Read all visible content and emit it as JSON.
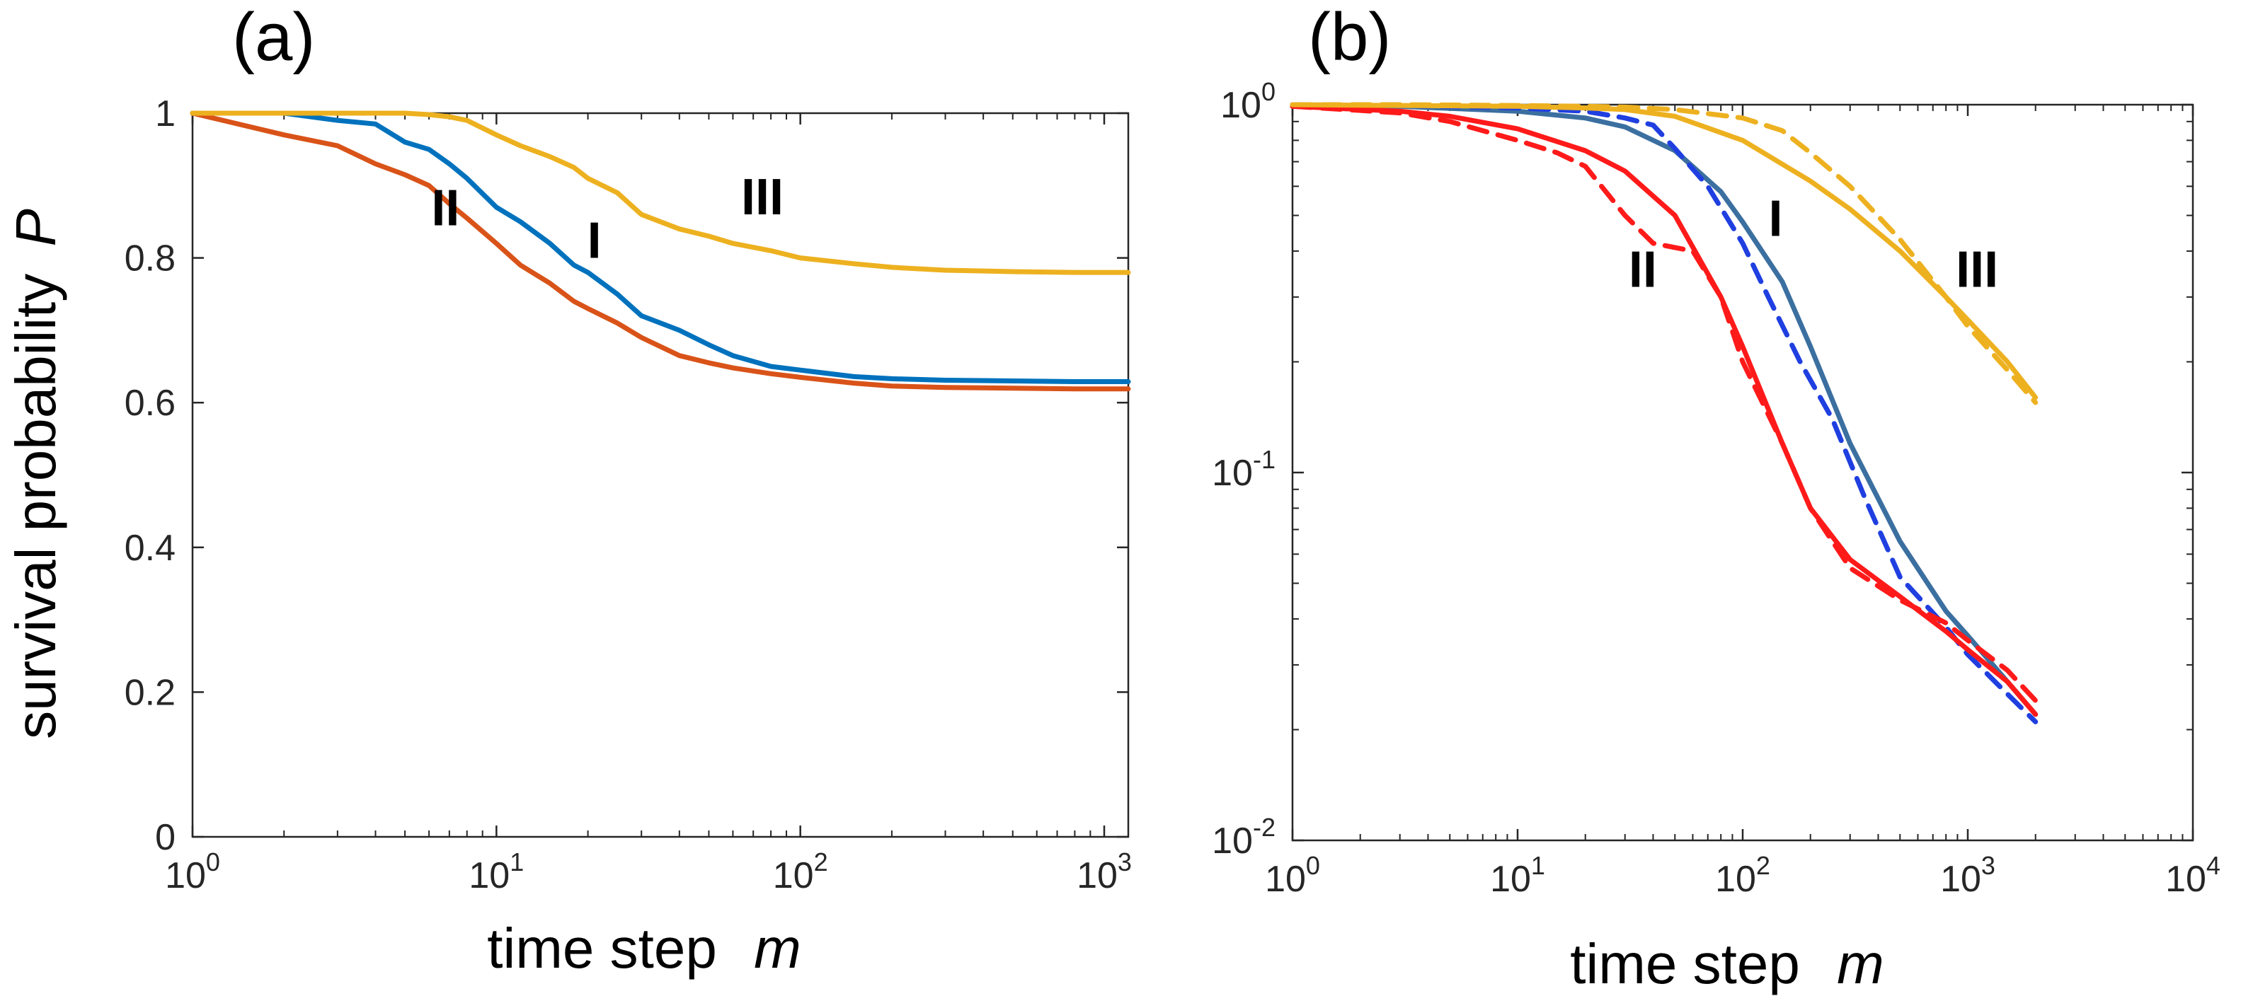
{
  "chart_data": [
    {
      "panel": "(a)",
      "type": "line",
      "xscale": "log",
      "yscale": "linear",
      "xlabel": "time step",
      "xlabel_var": "m",
      "ylabel": "survival probability",
      "ylabel_var": "P",
      "xlim": [
        1,
        1200
      ],
      "ylim": [
        0,
        1
      ],
      "xticks": [
        {
          "value": 1,
          "base": "10",
          "exp": "0"
        },
        {
          "value": 10,
          "base": "10",
          "exp": "1"
        },
        {
          "value": 100,
          "base": "10",
          "exp": "2"
        },
        {
          "value": 1000,
          "base": "10",
          "exp": "3"
        }
      ],
      "yticks": [
        {
          "value": 0,
          "label": "0"
        },
        {
          "value": 0.2,
          "label": "0.2"
        },
        {
          "value": 0.4,
          "label": "0.4"
        },
        {
          "value": 0.6,
          "label": "0.6"
        },
        {
          "value": 0.8,
          "label": "0.8"
        },
        {
          "value": 1,
          "label": "1"
        }
      ],
      "grid": false,
      "series": [
        {
          "name": "I",
          "color": "#0072BD",
          "style": "solid",
          "x": [
            1,
            2,
            3,
            4,
            5,
            6,
            7,
            8,
            10,
            12,
            15,
            18,
            20,
            25,
            30,
            40,
            50,
            60,
            80,
            100,
            150,
            200,
            300,
            500,
            800,
            1200
          ],
          "y": [
            1,
            1,
            0.99,
            0.985,
            0.96,
            0.95,
            0.93,
            0.91,
            0.87,
            0.85,
            0.82,
            0.79,
            0.78,
            0.75,
            0.72,
            0.7,
            0.68,
            0.665,
            0.65,
            0.645,
            0.636,
            0.633,
            0.631,
            0.63,
            0.629,
            0.629
          ]
        },
        {
          "name": "II",
          "color": "#D95319",
          "style": "solid",
          "x": [
            1,
            2,
            3,
            4,
            5,
            6,
            7,
            8,
            10,
            12,
            15,
            18,
            20,
            25,
            30,
            40,
            50,
            60,
            80,
            100,
            150,
            200,
            300,
            500,
            800,
            1200
          ],
          "y": [
            1,
            0.97,
            0.955,
            0.93,
            0.915,
            0.9,
            0.875,
            0.855,
            0.82,
            0.79,
            0.765,
            0.74,
            0.73,
            0.71,
            0.69,
            0.665,
            0.655,
            0.648,
            0.64,
            0.635,
            0.627,
            0.623,
            0.621,
            0.62,
            0.619,
            0.619
          ]
        },
        {
          "name": "III",
          "color": "#EDB120",
          "style": "solid",
          "x": [
            1,
            2,
            3,
            4,
            5,
            6,
            7,
            8,
            10,
            12,
            15,
            18,
            20,
            25,
            30,
            40,
            50,
            60,
            80,
            100,
            150,
            200,
            300,
            500,
            800,
            1200
          ],
          "y": [
            1,
            1,
            1,
            1,
            1,
            0.998,
            0.995,
            0.99,
            0.97,
            0.955,
            0.94,
            0.925,
            0.91,
            0.89,
            0.86,
            0.84,
            0.83,
            0.82,
            0.81,
            0.8,
            0.792,
            0.787,
            0.783,
            0.781,
            0.78,
            0.78
          ]
        }
      ],
      "annotations": [
        {
          "text": "II",
          "x": 6.8,
          "y": 0.845
        },
        {
          "text": "I",
          "x": 21,
          "y": 0.8
        },
        {
          "text": "III",
          "x": 75,
          "y": 0.86
        }
      ]
    },
    {
      "panel": "(b)",
      "type": "line",
      "xscale": "log",
      "yscale": "log",
      "xlabel": "time step",
      "xlabel_var": "m",
      "xlim": [
        1,
        10000
      ],
      "ylim": [
        0.01,
        1.0
      ],
      "xticks": [
        {
          "value": 1,
          "base": "10",
          "exp": "0"
        },
        {
          "value": 10,
          "base": "10",
          "exp": "1"
        },
        {
          "value": 100,
          "base": "10",
          "exp": "2"
        },
        {
          "value": 1000,
          "base": "10",
          "exp": "3"
        },
        {
          "value": 10000,
          "base": "10",
          "exp": "4"
        }
      ],
      "yticks": [
        {
          "value": 0.01,
          "base": "10",
          "exp": "-2"
        },
        {
          "value": 0.1,
          "base": "10",
          "exp": "-1"
        },
        {
          "value": 1,
          "base": "10",
          "exp": "0"
        }
      ],
      "grid": false,
      "series": [
        {
          "name": "I",
          "color": "#3B6FA0",
          "style": "solid",
          "x": [
            1,
            3,
            10,
            20,
            30,
            50,
            80,
            100,
            150,
            200,
            300,
            500,
            800,
            1000,
            1500,
            2000
          ],
          "y": [
            0.995,
            0.99,
            0.96,
            0.92,
            0.87,
            0.75,
            0.58,
            0.48,
            0.33,
            0.22,
            0.12,
            0.065,
            0.042,
            0.036,
            0.027,
            0.022
          ]
        },
        {
          "name": "I",
          "color": "#1F3FE0",
          "style": "dashed",
          "x": [
            1,
            3,
            10,
            20,
            30,
            40,
            50,
            70,
            100,
            130,
            180,
            250,
            350,
            500,
            800,
            1000,
            1500,
            2000
          ],
          "y": [
            1.0,
            0.995,
            0.98,
            0.96,
            0.92,
            0.88,
            0.76,
            0.6,
            0.42,
            0.3,
            0.2,
            0.14,
            0.085,
            0.052,
            0.038,
            0.032,
            0.025,
            0.021
          ]
        },
        {
          "name": "II",
          "color": "#FF1A1A",
          "style": "solid",
          "x": [
            1,
            3,
            5,
            10,
            20,
            30,
            50,
            80,
            100,
            150,
            200,
            300,
            500,
            800,
            1000,
            1500,
            2000
          ],
          "y": [
            0.99,
            0.96,
            0.93,
            0.86,
            0.75,
            0.66,
            0.5,
            0.3,
            0.22,
            0.12,
            0.08,
            0.058,
            0.046,
            0.037,
            0.033,
            0.027,
            0.022
          ]
        },
        {
          "name": "II",
          "color": "#FF1A1A",
          "style": "dashed",
          "x": [
            1,
            3,
            5,
            10,
            15,
            20,
            30,
            40,
            60,
            80,
            100,
            150,
            200,
            300,
            500,
            800,
            1000,
            1500,
            2000
          ],
          "y": [
            0.99,
            0.95,
            0.9,
            0.8,
            0.74,
            0.68,
            0.5,
            0.42,
            0.4,
            0.3,
            0.2,
            0.12,
            0.08,
            0.055,
            0.045,
            0.039,
            0.035,
            0.029,
            0.024
          ]
        },
        {
          "name": "III",
          "color": "#EDB120",
          "style": "solid",
          "x": [
            1,
            3,
            10,
            20,
            30,
            50,
            100,
            200,
            300,
            500,
            800,
            1000,
            1500,
            2000
          ],
          "y": [
            1.0,
            0.995,
            0.99,
            0.98,
            0.97,
            0.93,
            0.8,
            0.62,
            0.52,
            0.4,
            0.3,
            0.26,
            0.2,
            0.16
          ]
        },
        {
          "name": "III",
          "color": "#EDB120",
          "style": "dashed",
          "x": [
            1,
            3,
            10,
            20,
            30,
            50,
            100,
            150,
            200,
            300,
            500,
            800,
            1000,
            1500,
            2000
          ],
          "y": [
            1.0,
            1.0,
            0.995,
            0.99,
            0.985,
            0.97,
            0.92,
            0.85,
            0.74,
            0.6,
            0.43,
            0.3,
            0.25,
            0.19,
            0.155
          ]
        }
      ],
      "annotations": [
        {
          "text": "II",
          "x": 36,
          "y": 0.32
        },
        {
          "text": "I",
          "x": 140,
          "y": 0.44
        },
        {
          "text": "III",
          "x": 1100,
          "y": 0.32
        }
      ]
    }
  ]
}
